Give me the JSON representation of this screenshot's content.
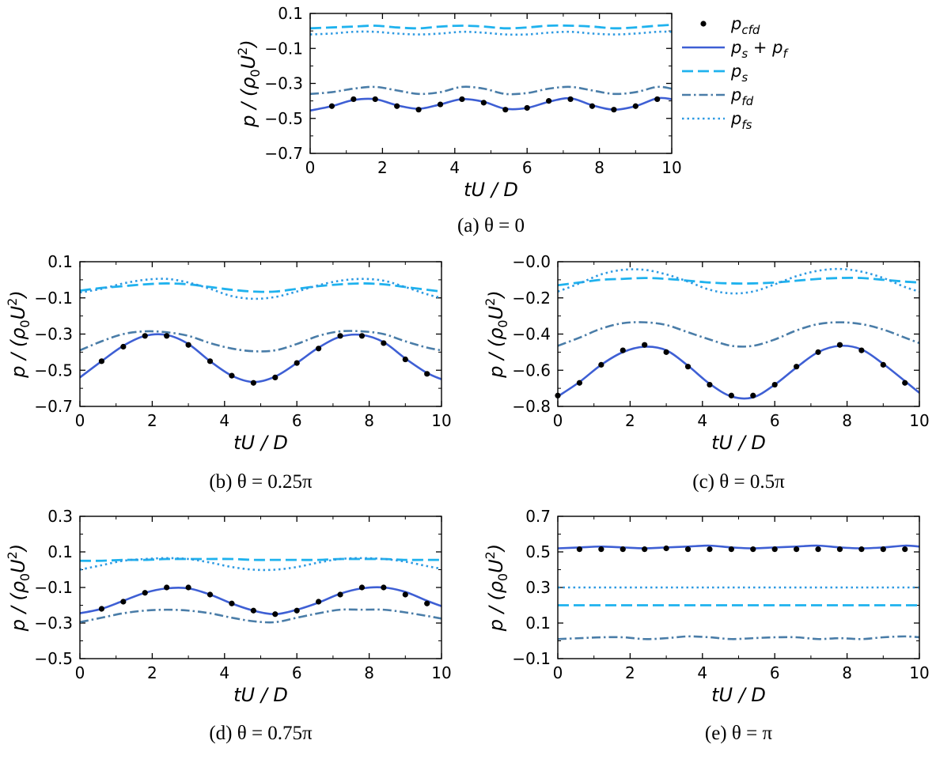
{
  "colors": {
    "cfd": "#000000",
    "sum": "#3e5fd4",
    "ps": "#1fb2ee",
    "pfd": "#4a7da8",
    "pfs": "#2e9ae2"
  },
  "legend": {
    "entries": [
      {
        "key": "cfd",
        "base": "p",
        "sub": "cfd"
      },
      {
        "key": "sum",
        "base": "p",
        "sub": "s",
        "plus": " + ",
        "base2": "p",
        "sub2": "f"
      },
      {
        "key": "ps",
        "base": "p",
        "sub": "s"
      },
      {
        "key": "pfd",
        "base": "p",
        "sub": "fd"
      },
      {
        "key": "pfs",
        "base": "p",
        "sub": "fs"
      }
    ]
  },
  "chart_data": [
    {
      "id": "a",
      "type": "line",
      "caption": "(a) θ = 0",
      "xlabel": "tU / D",
      "ylabel": "p / (ρ0U2)",
      "xlim": [
        0,
        10
      ],
      "ylim": [
        -0.7,
        0.1
      ],
      "xticks": [
        "0",
        "2",
        "4",
        "6",
        "8",
        "10"
      ],
      "yticks": [
        "−0.7",
        "−0.5",
        "−0.3",
        "−0.1",
        "0.1"
      ],
      "x": [
        0,
        0.6,
        1.2,
        1.8,
        2.4,
        3.0,
        3.6,
        4.2,
        4.8,
        5.4,
        6.0,
        6.6,
        7.2,
        7.8,
        8.4,
        9.0,
        9.6,
        10
      ],
      "series": [
        {
          "key": "cfd",
          "marker": "dot",
          "values": [
            null,
            -0.43,
            -0.39,
            -0.39,
            -0.43,
            -0.45,
            -0.42,
            -0.39,
            -0.41,
            -0.45,
            -0.44,
            -0.4,
            -0.39,
            -0.43,
            -0.45,
            -0.43,
            -0.39,
            null
          ]
        },
        {
          "key": "sum",
          "values": [
            -0.455,
            -0.43,
            -0.395,
            -0.39,
            -0.425,
            -0.445,
            -0.42,
            -0.39,
            -0.405,
            -0.445,
            -0.44,
            -0.405,
            -0.385,
            -0.425,
            -0.45,
            -0.43,
            -0.385,
            -0.39
          ]
        },
        {
          "key": "ps",
          "values": [
            0.015,
            0.02,
            0.025,
            0.03,
            0.02,
            0.015,
            0.025,
            0.03,
            0.025,
            0.015,
            0.02,
            0.03,
            0.03,
            0.025,
            0.015,
            0.02,
            0.03,
            0.035
          ]
        },
        {
          "key": "pfd",
          "values": [
            -0.36,
            -0.35,
            -0.33,
            -0.32,
            -0.34,
            -0.36,
            -0.35,
            -0.32,
            -0.33,
            -0.36,
            -0.355,
            -0.33,
            -0.32,
            -0.34,
            -0.36,
            -0.35,
            -0.32,
            -0.33
          ]
        },
        {
          "key": "pfs",
          "values": [
            -0.02,
            -0.015,
            -0.005,
            -0.005,
            -0.015,
            -0.02,
            -0.015,
            -0.005,
            -0.01,
            -0.02,
            -0.02,
            -0.01,
            -0.005,
            -0.015,
            -0.02,
            -0.015,
            -0.005,
            -0.005
          ]
        }
      ]
    },
    {
      "id": "b",
      "type": "line",
      "caption": "(b) θ = 0.25π",
      "xlabel": "tU / D",
      "ylabel": "p / (ρ0U2)",
      "xlim": [
        0,
        10
      ],
      "ylim": [
        -0.7,
        0.1
      ],
      "xticks": [
        "0",
        "2",
        "4",
        "6",
        "8",
        "10"
      ],
      "yticks": [
        "−0.7",
        "−0.5",
        "−0.3",
        "−0.1",
        "0.1"
      ],
      "x": [
        0,
        0.6,
        1.2,
        1.8,
        2.4,
        3.0,
        3.6,
        4.2,
        4.8,
        5.4,
        6.0,
        6.6,
        7.2,
        7.8,
        8.4,
        9.0,
        9.6,
        10
      ],
      "series": [
        {
          "key": "cfd",
          "marker": "dot",
          "values": [
            null,
            -0.45,
            -0.37,
            -0.31,
            -0.31,
            -0.36,
            -0.45,
            -0.53,
            -0.57,
            -0.54,
            -0.46,
            -0.38,
            -0.31,
            -0.31,
            -0.35,
            -0.44,
            -0.52,
            null
          ]
        },
        {
          "key": "sum",
          "values": [
            -0.54,
            -0.45,
            -0.365,
            -0.31,
            -0.305,
            -0.355,
            -0.45,
            -0.53,
            -0.565,
            -0.535,
            -0.46,
            -0.375,
            -0.315,
            -0.305,
            -0.345,
            -0.435,
            -0.515,
            -0.55
          ]
        },
        {
          "key": "ps",
          "values": [
            -0.06,
            -0.045,
            -0.035,
            -0.025,
            -0.02,
            -0.025,
            -0.04,
            -0.055,
            -0.065,
            -0.065,
            -0.05,
            -0.035,
            -0.025,
            -0.02,
            -0.025,
            -0.04,
            -0.055,
            -0.065
          ]
        },
        {
          "key": "pfd",
          "values": [
            -0.39,
            -0.34,
            -0.3,
            -0.285,
            -0.29,
            -0.31,
            -0.35,
            -0.38,
            -0.395,
            -0.39,
            -0.355,
            -0.31,
            -0.285,
            -0.285,
            -0.3,
            -0.34,
            -0.375,
            -0.39
          ]
        },
        {
          "key": "pfs",
          "values": [
            -0.07,
            -0.05,
            -0.02,
            0.0,
            0.005,
            -0.015,
            -0.05,
            -0.09,
            -0.105,
            -0.095,
            -0.065,
            -0.03,
            -0.005,
            0.005,
            -0.005,
            -0.04,
            -0.08,
            -0.1
          ]
        }
      ]
    },
    {
      "id": "c",
      "type": "line",
      "caption": "(c) θ = 0.5π",
      "xlabel": "tU / D",
      "ylabel": "p / (ρ0U2)",
      "xlim": [
        0,
        10
      ],
      "ylim": [
        -0.8,
        0.0
      ],
      "xticks": [
        "0",
        "2",
        "4",
        "6",
        "8",
        "10"
      ],
      "yticks": [
        "−0.8",
        "−0.6",
        "−0.4",
        "−0.2",
        "−0.0"
      ],
      "x": [
        0,
        0.6,
        1.2,
        1.8,
        2.4,
        3.0,
        3.6,
        4.2,
        4.8,
        5.4,
        6.0,
        6.6,
        7.2,
        7.8,
        8.4,
        9.0,
        9.6,
        10
      ],
      "series": [
        {
          "key": "cfd",
          "marker": "dot",
          "values": [
            -0.74,
            -0.67,
            -0.57,
            -0.49,
            -0.46,
            -0.5,
            -0.58,
            -0.68,
            -0.74,
            -0.74,
            -0.68,
            -0.58,
            -0.5,
            -0.46,
            -0.49,
            -0.57,
            -0.67,
            null
          ]
        },
        {
          "key": "sum",
          "values": [
            -0.745,
            -0.665,
            -0.57,
            -0.5,
            -0.47,
            -0.49,
            -0.575,
            -0.675,
            -0.745,
            -0.75,
            -0.68,
            -0.585,
            -0.5,
            -0.465,
            -0.485,
            -0.565,
            -0.66,
            -0.725
          ]
        },
        {
          "key": "ps",
          "values": [
            -0.13,
            -0.115,
            -0.1,
            -0.095,
            -0.09,
            -0.095,
            -0.105,
            -0.115,
            -0.12,
            -0.12,
            -0.115,
            -0.105,
            -0.095,
            -0.09,
            -0.09,
            -0.1,
            -0.11,
            -0.115
          ]
        },
        {
          "key": "pfd",
          "values": [
            -0.465,
            -0.42,
            -0.37,
            -0.34,
            -0.335,
            -0.35,
            -0.39,
            -0.43,
            -0.465,
            -0.465,
            -0.43,
            -0.38,
            -0.345,
            -0.335,
            -0.345,
            -0.375,
            -0.42,
            -0.45
          ]
        },
        {
          "key": "pfs",
          "values": [
            -0.165,
            -0.12,
            -0.07,
            -0.045,
            -0.045,
            -0.07,
            -0.11,
            -0.155,
            -0.175,
            -0.165,
            -0.125,
            -0.08,
            -0.05,
            -0.04,
            -0.055,
            -0.09,
            -0.14,
            -0.165
          ]
        }
      ]
    },
    {
      "id": "d",
      "type": "line",
      "caption": "(d) θ = 0.75π",
      "xlabel": "tU / D",
      "ylabel": "p / (ρ0U2)",
      "xlim": [
        0,
        10
      ],
      "ylim": [
        -0.5,
        0.3
      ],
      "xticks": [
        "0",
        "2",
        "4",
        "6",
        "8",
        "10"
      ],
      "yticks": [
        "−0.5",
        "−0.3",
        "−0.1",
        "0.1",
        "0.3"
      ],
      "x": [
        0,
        0.6,
        1.2,
        1.8,
        2.4,
        3.0,
        3.6,
        4.2,
        4.8,
        5.4,
        6.0,
        6.6,
        7.2,
        7.8,
        8.4,
        9.0,
        9.6,
        10
      ],
      "series": [
        {
          "key": "cfd",
          "marker": "dot",
          "values": [
            null,
            -0.22,
            -0.18,
            -0.13,
            -0.1,
            -0.1,
            -0.14,
            -0.19,
            -0.23,
            -0.25,
            -0.23,
            -0.18,
            -0.14,
            -0.1,
            -0.1,
            -0.14,
            -0.19,
            null
          ]
        },
        {
          "key": "sum",
          "values": [
            -0.245,
            -0.22,
            -0.175,
            -0.13,
            -0.105,
            -0.105,
            -0.14,
            -0.19,
            -0.23,
            -0.25,
            -0.225,
            -0.185,
            -0.135,
            -0.105,
            -0.1,
            -0.125,
            -0.175,
            -0.205
          ]
        },
        {
          "key": "ps",
          "values": [
            0.05,
            0.05,
            0.055,
            0.055,
            0.06,
            0.06,
            0.06,
            0.06,
            0.055,
            0.055,
            0.055,
            0.055,
            0.06,
            0.06,
            0.06,
            0.055,
            0.055,
            0.055
          ]
        },
        {
          "key": "pfd",
          "values": [
            -0.295,
            -0.27,
            -0.245,
            -0.23,
            -0.225,
            -0.23,
            -0.245,
            -0.27,
            -0.29,
            -0.295,
            -0.27,
            -0.245,
            -0.225,
            -0.225,
            -0.225,
            -0.24,
            -0.26,
            -0.275
          ]
        },
        {
          "key": "pfs",
          "values": [
            0.0,
            0.025,
            0.05,
            0.06,
            0.065,
            0.06,
            0.04,
            0.015,
            0.0,
            0.0,
            0.015,
            0.04,
            0.06,
            0.065,
            0.06,
            0.045,
            0.02,
            0.005
          ]
        }
      ]
    },
    {
      "id": "e",
      "type": "line",
      "caption": "(e) θ = π",
      "xlabel": "tU / D",
      "ylabel": "p / (ρ0U2)",
      "xlim": [
        0,
        10
      ],
      "ylim": [
        -0.1,
        0.7
      ],
      "xticks": [
        "0",
        "2",
        "4",
        "6",
        "8",
        "10"
      ],
      "yticks": [
        "−0.1",
        "0.1",
        "0.3",
        "0.5",
        "0.7"
      ],
      "x": [
        0,
        0.6,
        1.2,
        1.8,
        2.4,
        3.0,
        3.6,
        4.2,
        4.8,
        5.4,
        6.0,
        6.6,
        7.2,
        7.8,
        8.4,
        9.0,
        9.6,
        10
      ],
      "series": [
        {
          "key": "cfd",
          "marker": "dot",
          "values": [
            null,
            0.515,
            0.515,
            0.515,
            0.515,
            0.52,
            0.515,
            0.515,
            0.515,
            0.515,
            0.515,
            0.515,
            0.515,
            0.515,
            0.515,
            0.515,
            0.515,
            null
          ]
        },
        {
          "key": "sum",
          "values": [
            0.52,
            0.525,
            0.53,
            0.525,
            0.52,
            0.525,
            0.53,
            0.535,
            0.525,
            0.52,
            0.525,
            0.53,
            0.535,
            0.525,
            0.52,
            0.525,
            0.535,
            0.53
          ]
        },
        {
          "key": "ps",
          "values": [
            0.2,
            0.2,
            0.2,
            0.2,
            0.2,
            0.2,
            0.2,
            0.2,
            0.2,
            0.2,
            0.2,
            0.2,
            0.2,
            0.2,
            0.2,
            0.2,
            0.2,
            0.2
          ]
        },
        {
          "key": "pfd",
          "values": [
            0.01,
            0.015,
            0.02,
            0.02,
            0.01,
            0.015,
            0.025,
            0.02,
            0.01,
            0.015,
            0.02,
            0.02,
            0.01,
            0.015,
            0.01,
            0.02,
            0.025,
            0.02
          ]
        },
        {
          "key": "pfs",
          "values": [
            0.3,
            0.3,
            0.3,
            0.3,
            0.3,
            0.3,
            0.3,
            0.3,
            0.3,
            0.3,
            0.3,
            0.3,
            0.3,
            0.3,
            0.3,
            0.3,
            0.3,
            0.3
          ]
        }
      ]
    }
  ]
}
